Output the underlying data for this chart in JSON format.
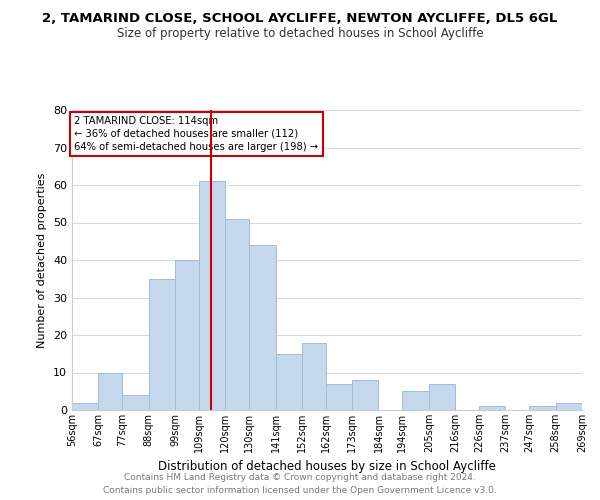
{
  "title": "2, TAMARIND CLOSE, SCHOOL AYCLIFFE, NEWTON AYCLIFFE, DL5 6GL",
  "subtitle": "Size of property relative to detached houses in School Aycliffe",
  "xlabel": "Distribution of detached houses by size in School Aycliffe",
  "ylabel": "Number of detached properties",
  "bar_color": "#c5d8ed",
  "bar_edge_color": "#a0bcd8",
  "bin_edges": [
    56,
    67,
    77,
    88,
    99,
    109,
    120,
    130,
    141,
    152,
    162,
    173,
    184,
    194,
    205,
    216,
    226,
    237,
    247,
    258,
    269
  ],
  "bin_labels": [
    "56sqm",
    "67sqm",
    "77sqm",
    "88sqm",
    "99sqm",
    "109sqm",
    "120sqm",
    "130sqm",
    "141sqm",
    "152sqm",
    "162sqm",
    "173sqm",
    "184sqm",
    "194sqm",
    "205sqm",
    "216sqm",
    "226sqm",
    "237sqm",
    "247sqm",
    "258sqm",
    "269sqm"
  ],
  "counts": [
    2,
    10,
    4,
    35,
    40,
    61,
    51,
    44,
    15,
    18,
    7,
    8,
    0,
    5,
    7,
    0,
    1,
    0,
    1,
    2
  ],
  "vline_x": 114,
  "vline_color": "#cc0000",
  "annotation_title": "2 TAMARIND CLOSE: 114sqm",
  "annotation_line1": "← 36% of detached houses are smaller (112)",
  "annotation_line2": "64% of semi-detached houses are larger (198) →",
  "annotation_box_color": "#ffffff",
  "annotation_box_edge_color": "#cc0000",
  "ylim": [
    0,
    80
  ],
  "yticks": [
    0,
    10,
    20,
    30,
    40,
    50,
    60,
    70,
    80
  ],
  "footer1": "Contains HM Land Registry data © Crown copyright and database right 2024.",
  "footer2": "Contains public sector information licensed under the Open Government Licence v3.0.",
  "background_color": "#ffffff",
  "grid_color": "#d0d8e8"
}
